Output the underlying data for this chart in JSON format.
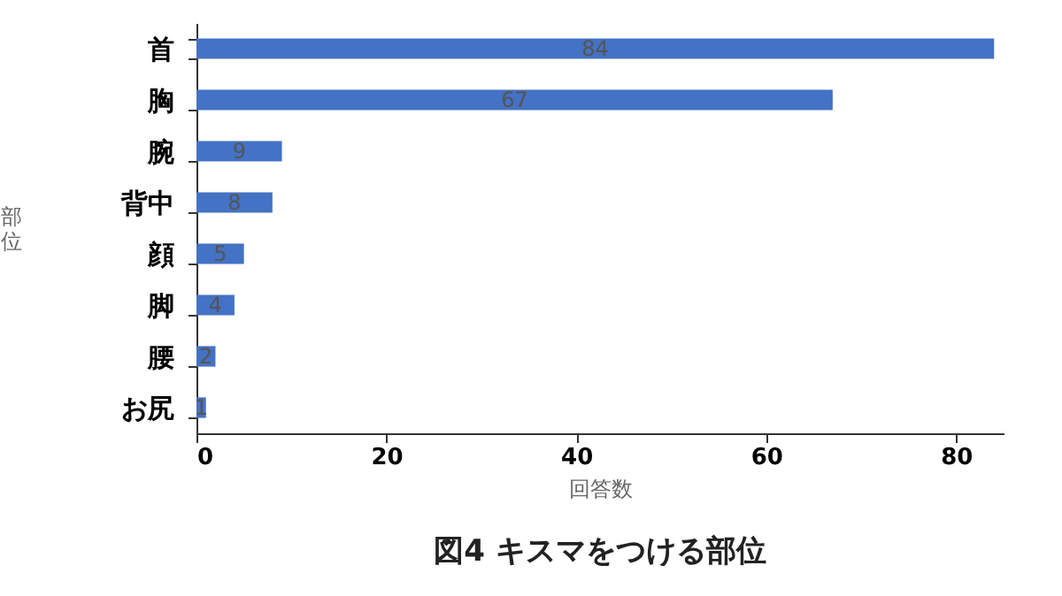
{
  "chart_data": {
    "type": "bar",
    "orientation": "horizontal",
    "title": "図4 キスマをつける部位",
    "xlabel": "回答数",
    "ylabel": "部位",
    "categories": [
      "首",
      "胸",
      "腕",
      "背中",
      "顔",
      "脚",
      "腰",
      "お尻"
    ],
    "values": [
      84,
      67,
      9,
      8,
      5,
      4,
      2,
      1
    ],
    "color": "#4472c4",
    "data_labels": true,
    "xlim": [
      0,
      85
    ],
    "xticks": [
      0,
      20,
      40,
      60,
      80
    ],
    "grid": false
  }
}
